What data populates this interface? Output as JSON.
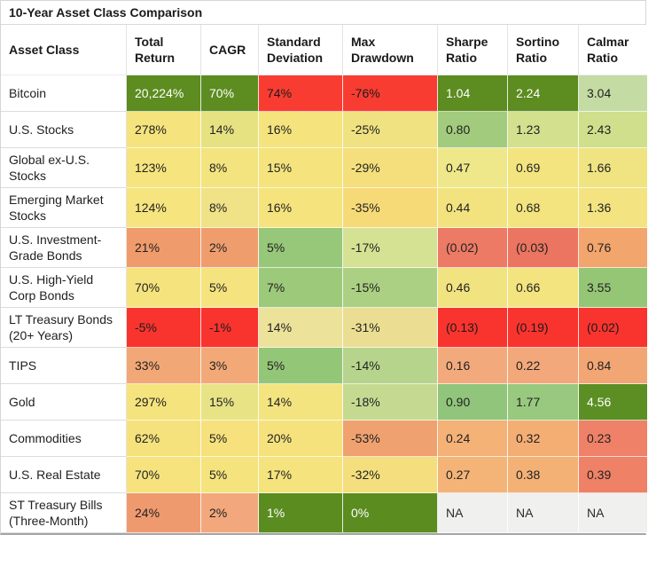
{
  "title": "10-Year Asset Class Comparison",
  "chart_data": {
    "type": "table",
    "title": "10-Year Asset Class Comparison",
    "columns": [
      "Asset Class",
      "Total Return",
      "CAGR",
      "Standard Deviation",
      "Max Drawdown",
      "Sharpe Ratio",
      "Sortino Ratio",
      "Calmar Ratio"
    ],
    "heatmap_legend": {
      "best_color": "#5d8c20",
      "mid_color": "#f5e47e",
      "worst_color": "#f93c32",
      "na_color": "#f0f0ee"
    },
    "rows": [
      {
        "label": "Bitcoin",
        "values": [
          "20,224%",
          "70%",
          "74%",
          "-76%",
          "1.04",
          "2.24",
          "3.04"
        ],
        "bg": [
          "#5d8c20",
          "#5d8c20",
          "#f93c32",
          "#f93c32",
          "#5d8c20",
          "#5d8c20",
          "#c4dba3"
        ],
        "fg": [
          "#ffffff",
          "#ffffff",
          "#1b1b1b",
          "#1b1b1b",
          "#ffffff",
          "#ffffff",
          "#222222"
        ]
      },
      {
        "label": "U.S. Stocks",
        "values": [
          "278%",
          "14%",
          "16%",
          "-25%",
          "0.80",
          "1.23",
          "2.43"
        ],
        "bg": [
          "#f5e37d",
          "#e6e282",
          "#f5e47e",
          "#f1e281",
          "#a2cb7d",
          "#d3e08e",
          "#cfdf8c"
        ],
        "fg": [
          "#222222",
          "#222222",
          "#222222",
          "#222222",
          "#222222",
          "#222222",
          "#222222"
        ]
      },
      {
        "label": "Global ex-U.S. Stocks",
        "values": [
          "123%",
          "8%",
          "15%",
          "-29%",
          "0.47",
          "0.69",
          "1.66"
        ],
        "bg": [
          "#f6e47e",
          "#f3e480",
          "#f5e47e",
          "#f5df7c",
          "#eee88a",
          "#f3e480",
          "#f0e382"
        ],
        "fg": [
          "#222222",
          "#222222",
          "#222222",
          "#222222",
          "#222222",
          "#222222",
          "#222222"
        ]
      },
      {
        "label": "Emerging Market Stocks",
        "values": [
          "124%",
          "8%",
          "16%",
          "-35%",
          "0.44",
          "0.68",
          "1.36"
        ],
        "bg": [
          "#f6e47e",
          "#efe287",
          "#f5e47e",
          "#f7da78",
          "#f3e37f",
          "#f3e480",
          "#f3e381"
        ],
        "fg": [
          "#222222",
          "#222222",
          "#222222",
          "#222222",
          "#222222",
          "#222222",
          "#222222"
        ]
      },
      {
        "label": "U.S. Investment-Grade Bonds",
        "values": [
          "21%",
          "2%",
          "5%",
          "-17%",
          "(0.02)",
          "(0.03)",
          "0.76"
        ],
        "bg": [
          "#f09b6c",
          "#f09d6e",
          "#97c778",
          "#d5e193",
          "#ec7a64",
          "#eb7560",
          "#f2a56d"
        ],
        "fg": [
          "#222222",
          "#222222",
          "#222222",
          "#222222",
          "#222222",
          "#222222",
          "#222222"
        ]
      },
      {
        "label": "U.S. High-Yield Corp Bonds",
        "values": [
          "70%",
          "5%",
          "7%",
          "-15%",
          "0.46",
          "0.66",
          "3.55"
        ],
        "bg": [
          "#f5e47e",
          "#f4e37e",
          "#9dc97b",
          "#abd083",
          "#f2e381",
          "#f3e480",
          "#95c676"
        ],
        "fg": [
          "#222222",
          "#222222",
          "#222222",
          "#222222",
          "#222222",
          "#222222",
          "#222222"
        ]
      },
      {
        "label": "LT Treasury Bonds\n(20+ Years)",
        "values": [
          "-5%",
          "-1%",
          "14%",
          "-31%",
          "(0.13)",
          "(0.19)",
          "(0.02)"
        ],
        "bg": [
          "#f9342e",
          "#f9342e",
          "#ece29a",
          "#ebde92",
          "#f9342e",
          "#f9342e",
          "#f9342e"
        ],
        "fg": [
          "#1b1b1b",
          "#1b1b1b",
          "#222222",
          "#222222",
          "#1b1b1b",
          "#1b1b1b",
          "#1b1b1b"
        ]
      },
      {
        "label": "TIPS",
        "values": [
          "33%",
          "3%",
          "5%",
          "-14%",
          "0.16",
          "0.22",
          "0.84"
        ],
        "bg": [
          "#f2a876",
          "#f2a977",
          "#94c677",
          "#b6d48c",
          "#f2aa7c",
          "#f2a87a",
          "#f2a674"
        ],
        "fg": [
          "#222222",
          "#222222",
          "#222222",
          "#222222",
          "#222222",
          "#222222",
          "#222222"
        ]
      },
      {
        "label": "Gold",
        "values": [
          "297%",
          "15%",
          "14%",
          "-18%",
          "0.90",
          "1.77",
          "4.56"
        ],
        "bg": [
          "#f5e47e",
          "#e8e486",
          "#f3e480",
          "#c5da90",
          "#90c57b",
          "#99c87f",
          "#5c8f23"
        ],
        "fg": [
          "#222222",
          "#222222",
          "#222222",
          "#222222",
          "#222222",
          "#222222",
          "#ffffff"
        ]
      },
      {
        "label": "Commodities",
        "values": [
          "62%",
          "5%",
          "20%",
          "-53%",
          "0.24",
          "0.32",
          "0.23"
        ],
        "bg": [
          "#f6e27c",
          "#f6e17c",
          "#f6e27d",
          "#f0a170",
          "#f4b277",
          "#f4ae74",
          "#ee8168"
        ],
        "fg": [
          "#222222",
          "#222222",
          "#222222",
          "#222222",
          "#222222",
          "#222222",
          "#222222"
        ]
      },
      {
        "label": "U.S. Real Estate",
        "values": [
          "70%",
          "5%",
          "17%",
          "-32%",
          "0.27",
          "0.38",
          "0.39"
        ],
        "bg": [
          "#f6e37d",
          "#f5e37d",
          "#f5e37d",
          "#f4de7d",
          "#f4b478",
          "#f4b176",
          "#ee8166"
        ],
        "fg": [
          "#222222",
          "#222222",
          "#222222",
          "#222222",
          "#222222",
          "#222222",
          "#222222"
        ]
      },
      {
        "label": "ST Treasury Bills\n(Three-Month)",
        "values": [
          "24%",
          "2%",
          "1%",
          "0%",
          "NA",
          "NA",
          "NA"
        ],
        "bg": [
          "#ef9a6e",
          "#f2a87c",
          "#5a8c20",
          "#5a8c20",
          "#f0f0ee",
          "#f0f0ee",
          "#f0f0ee"
        ],
        "fg": [
          "#222222",
          "#222222",
          "#ffffff",
          "#ffffff",
          "#2b2b2b",
          "#2b2b2b",
          "#2b2b2b"
        ]
      }
    ]
  }
}
